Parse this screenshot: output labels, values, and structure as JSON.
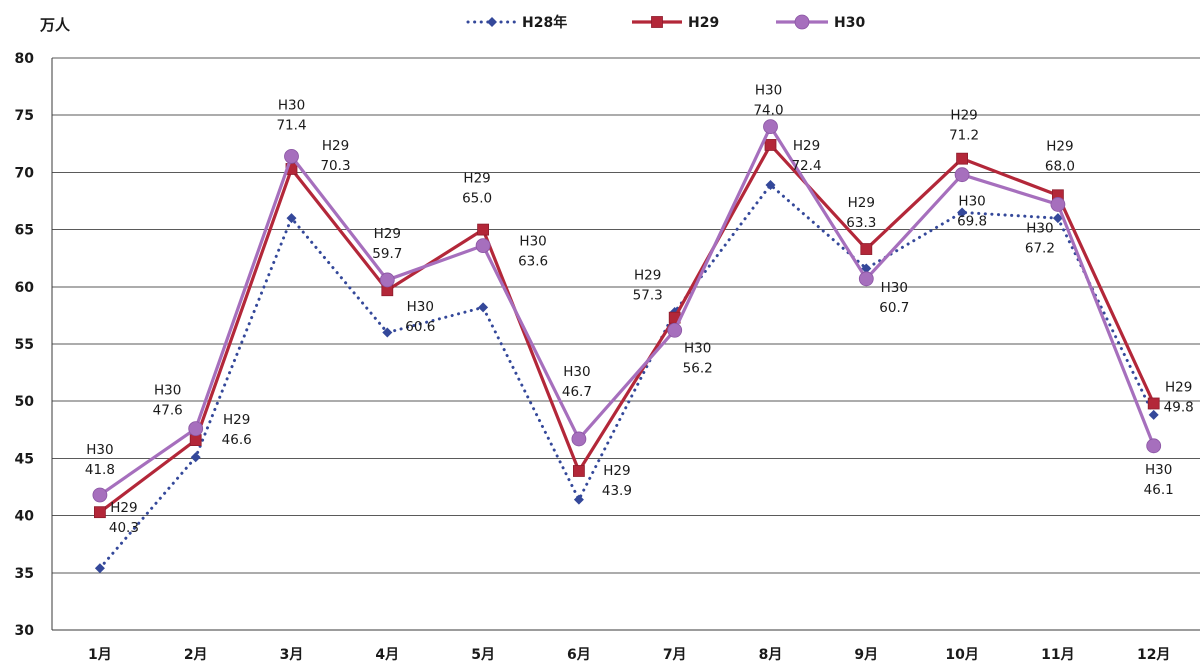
{
  "chart_data": {
    "type": "line",
    "ylabel": "万人",
    "categories": [
      "1月",
      "2月",
      "3月",
      "4月",
      "5月",
      "6月",
      "7月",
      "8月",
      "9月",
      "10月",
      "11月",
      "12月"
    ],
    "ylim": [
      30,
      80
    ],
    "yticks": [
      80,
      75,
      70,
      65,
      60,
      55,
      50,
      45,
      40,
      35,
      30
    ],
    "grid": true,
    "legend": "top-center",
    "series": [
      {
        "name": "H28年",
        "color": "#34489a",
        "line_style": "dotted",
        "marker": "diamond",
        "values": [
          35.4,
          45.1,
          66.0,
          56.0,
          58.2,
          41.4,
          57.8,
          68.9,
          61.6,
          66.5,
          66.0,
          48.8
        ]
      },
      {
        "name": "H29",
        "color": "#b32739",
        "line_style": "solid",
        "marker": "square",
        "values": [
          40.3,
          46.6,
          70.3,
          59.7,
          65.0,
          43.9,
          57.3,
          72.4,
          63.3,
          71.2,
          68.0,
          49.8
        ],
        "labels": [
          "40.3",
          "46.6",
          "70.3",
          "59.7",
          "65.0",
          "43.9",
          "57.3",
          "72.4",
          "63.3",
          "71.2",
          "68.0",
          "49.8"
        ]
      },
      {
        "name": "H30",
        "color": "#a66fbd",
        "line_style": "solid",
        "marker": "circle",
        "values": [
          41.8,
          47.6,
          71.4,
          60.6,
          63.6,
          46.7,
          56.2,
          74.0,
          60.7,
          69.8,
          67.2,
          46.1
        ],
        "labels": [
          "41.8",
          "47.6",
          "71.4",
          "60.6",
          "63.6",
          "46.7",
          "56.2",
          "74.0",
          "60.7",
          "69.8",
          "67.2",
          "46.1"
        ]
      }
    ]
  }
}
